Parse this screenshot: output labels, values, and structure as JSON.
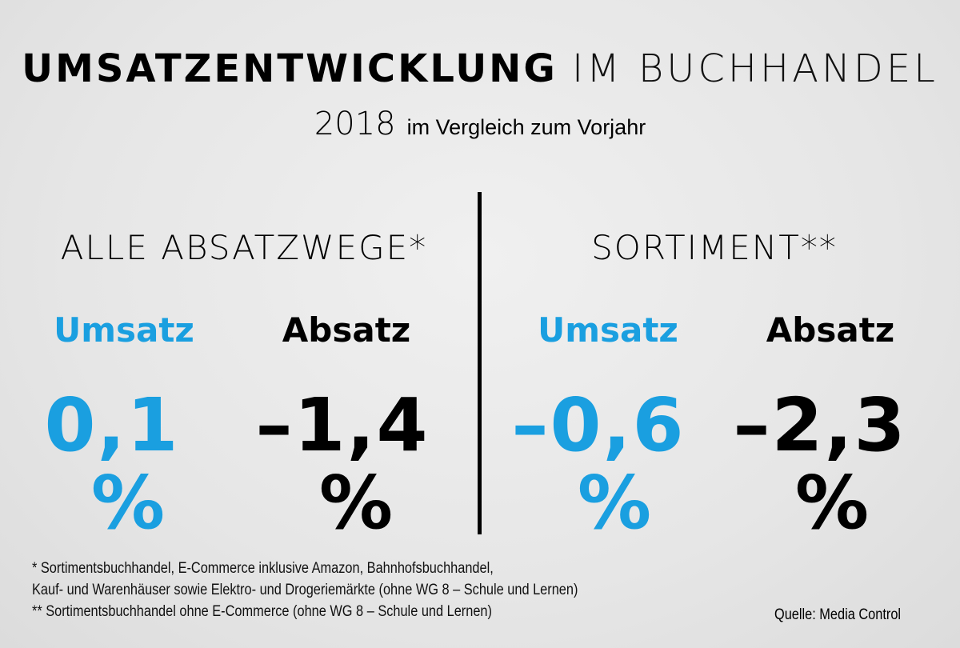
{
  "title": {
    "bold": "UMSATZENTWICKLUNG",
    "light": "IM BUCHHANDEL"
  },
  "subtitle": {
    "year": "2018",
    "text": "im Vergleich zum Vorjahr"
  },
  "colors": {
    "accent": "#1a9fe0",
    "text": "#000000"
  },
  "sections": [
    {
      "heading": "ALLE ABSATZWEGE*",
      "metrics": [
        {
          "label": "Umsatz",
          "value": "0,1",
          "unit": "%"
        },
        {
          "label": "Absatz",
          "value": "–1,4",
          "unit": "%"
        }
      ]
    },
    {
      "heading": "SORTIMENT**",
      "metrics": [
        {
          "label": "Umsatz",
          "value": "–0,6",
          "unit": "%"
        },
        {
          "label": "Absatz",
          "value": "–2,3",
          "unit": "%"
        }
      ]
    }
  ],
  "footnotes": [
    "* Sortimentsbuchhandel, E-Commerce inklusive Amazon, Bahnhofsbuchhandel,",
    "Kauf- und Warenhäuser sowie Elektro- und Drogeriemärkte (ohne WG 8 – Schule und Lernen)",
    "** Sortimentsbuchhandel ohne E-Commerce (ohne WG 8 – Schule und Lernen)"
  ],
  "source": "Quelle: Media Control"
}
